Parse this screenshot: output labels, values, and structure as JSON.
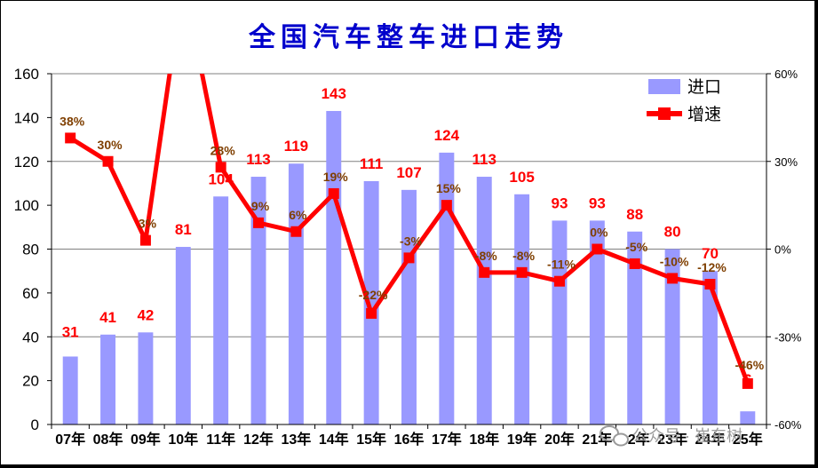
{
  "chart_data": {
    "type": "bar",
    "title": "全国汽车整车进口走势",
    "categories": [
      "07年",
      "08年",
      "09年",
      "10年",
      "11年",
      "12年",
      "13年",
      "14年",
      "15年",
      "16年",
      "17年",
      "18年",
      "19年",
      "20年",
      "21年",
      "22年",
      "23年",
      "24年",
      "25年"
    ],
    "series": [
      {
        "name": "进口",
        "type": "bar",
        "axis": "left",
        "color": "#9999ff",
        "values": [
          31,
          41,
          42,
          81,
          104,
          113,
          119,
          143,
          111,
          107,
          124,
          113,
          105,
          93,
          93,
          88,
          80,
          70,
          6
        ],
        "labels": [
          "31",
          "41",
          "42",
          "81",
          "104",
          "113",
          "119",
          "143",
          "111",
          "107",
          "124",
          "113",
          "105",
          "93",
          "93",
          "88",
          "80",
          "70",
          "6"
        ]
      },
      {
        "name": "增速",
        "type": "line",
        "axis": "right",
        "color": "#ff0000",
        "values": [
          38,
          30,
          3,
          92,
          28,
          9,
          6,
          19,
          -22,
          -3,
          15,
          -8,
          -8,
          -11,
          0,
          -5,
          -10,
          -12,
          -46
        ],
        "labels": [
          "38%",
          "30%",
          "3%",
          "",
          "28%",
          "9%",
          "6%",
          "19%",
          "-22%",
          "-3%",
          "15%",
          "-8%",
          "-8%",
          "-11%",
          "0%",
          "-5%",
          "-10%",
          "-12%",
          "-46%"
        ]
      }
    ],
    "ylim_left": [
      0,
      160
    ],
    "yticks_left": [
      "0",
      "20",
      "40",
      "60",
      "80",
      "100",
      "120",
      "140",
      "160"
    ],
    "ylim_right": [
      -60,
      60
    ],
    "yticks_right": [
      "-60%",
      "-30%",
      "0%",
      "30%",
      "60%"
    ],
    "grid": true,
    "legend_position": "top-right"
  },
  "watermark": "公众号 · 崔东树",
  "colors": {
    "bar": "#9999ff",
    "line": "#ff0000",
    "title": "#0000cc",
    "grid": "#808080"
  }
}
